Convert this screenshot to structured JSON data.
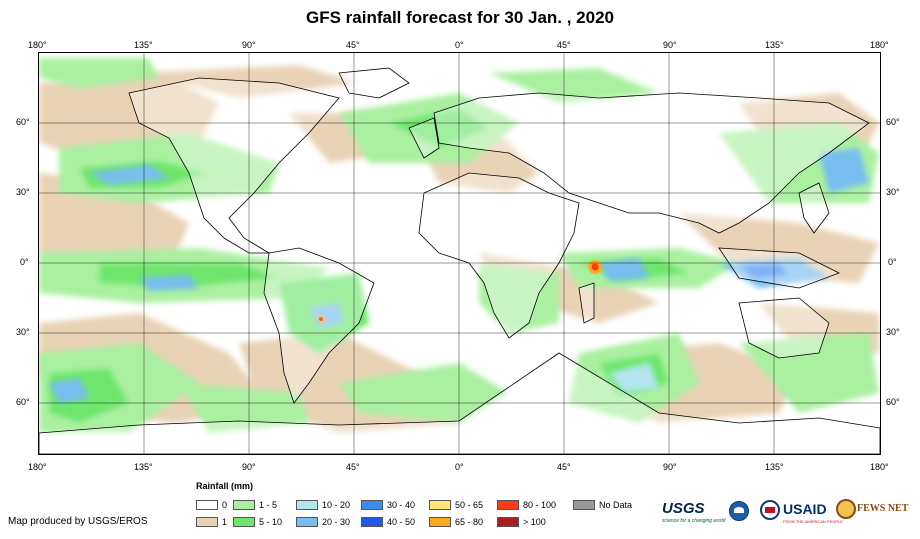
{
  "title": "GFS rainfall forecast for 30 Jan. , 2020",
  "lon_labels": [
    "180°",
    "135°",
    "90°",
    "45°",
    "0°",
    "45°",
    "90°",
    "135°",
    "180°"
  ],
  "lat_labels": [
    "60°",
    "30°",
    "0°",
    "30°",
    "60°"
  ],
  "legend": {
    "title": "Rainfall (mm)",
    "items": [
      {
        "label": "0",
        "color": "#ffffff"
      },
      {
        "label": "1",
        "color": "#e8d3b5"
      },
      {
        "label": "1 - 5",
        "color": "#aaf0a0"
      },
      {
        "label": "5 - 10",
        "color": "#6ee66e"
      },
      {
        "label": "10 - 20",
        "color": "#b4e6f0"
      },
      {
        "label": "20 - 30",
        "color": "#78bef0"
      },
      {
        "label": "30 - 40",
        "color": "#3c8cf0"
      },
      {
        "label": "40 - 50",
        "color": "#1e5ae6"
      },
      {
        "label": "50 - 65",
        "color": "#ffe678"
      },
      {
        "label": "65 - 80",
        "color": "#ffaa1e"
      },
      {
        "label": "80 - 100",
        "color": "#ff3c14"
      },
      {
        "label": "> 100",
        "color": "#aa1e1e"
      },
      {
        "label": "No Data",
        "color": "#999999"
      }
    ]
  },
  "credit": "Map produced by USGS/EROS",
  "logos": {
    "usgs": "USGS",
    "usgs_tagline": "science for a changing world",
    "usaid": "USAID",
    "usaid_tagline": "FROM THE AMERICAN PEOPLE",
    "fewsnet": "FEWS NET"
  },
  "icons": [
    "noaa-icon",
    "usaid-seal-icon",
    "fewsnet-icon"
  ]
}
